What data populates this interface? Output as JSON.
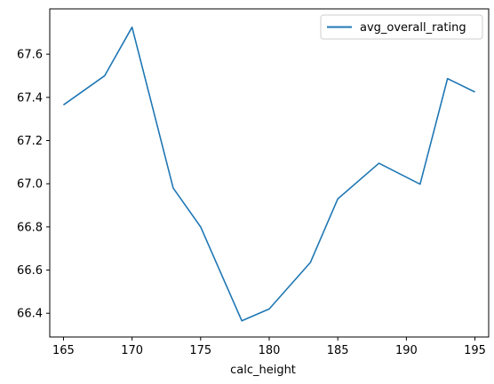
{
  "chart_data": {
    "type": "line",
    "title": "",
    "xlabel": "calc_height",
    "ylabel": "",
    "x": [
      165,
      168,
      170,
      173,
      175,
      178,
      180,
      183,
      185,
      188,
      191,
      193,
      195
    ],
    "series": [
      {
        "name": "avg_overall_rating",
        "color": "#1f77b4",
        "values": [
          67.365,
          67.5,
          67.725,
          66.98,
          66.8,
          66.365,
          66.42,
          66.635,
          66.93,
          67.095,
          66.998,
          67.487,
          67.425
        ]
      }
    ],
    "xlim": [
      164,
      196
    ],
    "ylim": [
      66.29,
      67.81
    ],
    "xticks": [
      "165",
      "170",
      "175",
      "180",
      "185",
      "190",
      "195"
    ],
    "yticks": [
      "66.4",
      "66.6",
      "66.8",
      "67.0",
      "67.2",
      "67.4",
      "67.6"
    ],
    "grid": false,
    "legend": "top-right"
  }
}
